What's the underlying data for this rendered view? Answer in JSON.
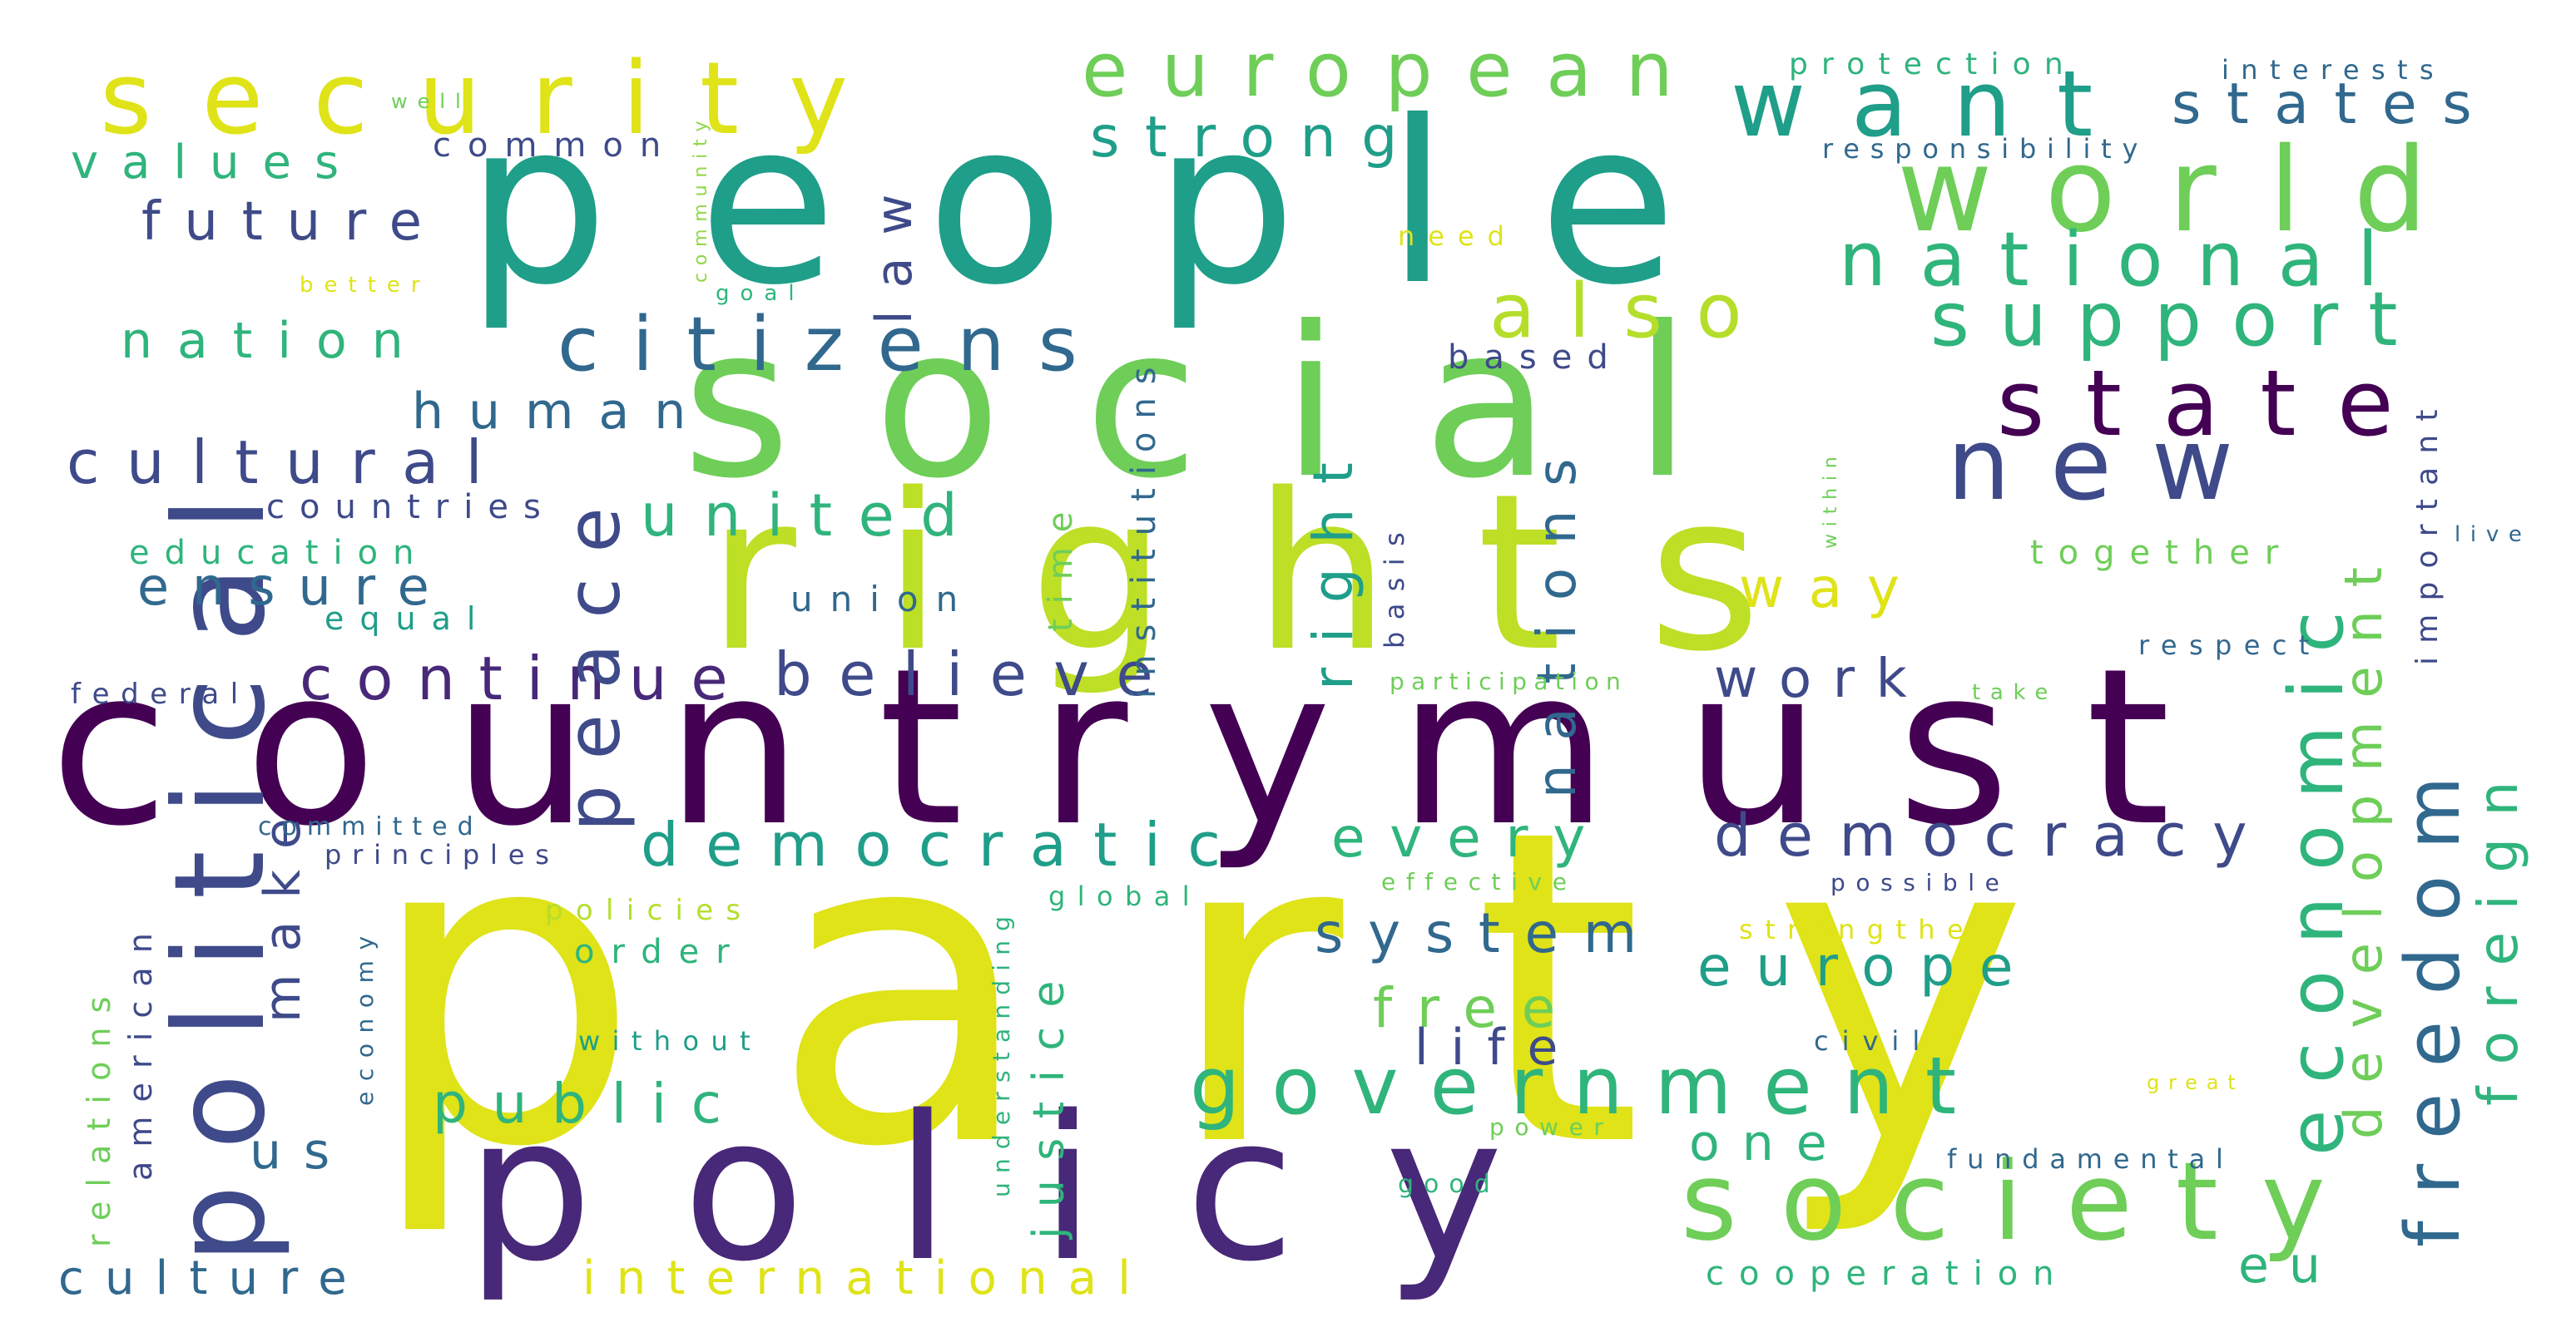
{
  "palette": {
    "yellow": "#dfe318",
    "lime": "#6ece58",
    "green": "#2fb47c",
    "teal": "#1f9e89",
    "blue": "#31688e",
    "indigo": "#3e4a89",
    "purple": "#440154",
    "darkpurple": "#482878"
  },
  "words": [
    {
      "key": "party",
      "text": "party",
      "color": "#dfe318"
    },
    {
      "key": "country",
      "text": "country",
      "color": "#440154"
    },
    {
      "key": "must",
      "text": "must",
      "color": "#440154"
    },
    {
      "key": "people",
      "text": "people",
      "color": "#1f9e89"
    },
    {
      "key": "social",
      "text": "social",
      "color": "#6ece58"
    },
    {
      "key": "rights",
      "text": "rights",
      "color": "#bddf26"
    },
    {
      "key": "policy",
      "text": "policy",
      "color": "#482878"
    },
    {
      "key": "political",
      "text": "political",
      "color": "#3e4a89"
    },
    {
      "key": "security",
      "text": "security",
      "color": "#dfe318"
    },
    {
      "key": "european",
      "text": "european",
      "color": "#6ece58"
    },
    {
      "key": "want",
      "text": "want",
      "color": "#1f9e89"
    },
    {
      "key": "world",
      "text": "world",
      "color": "#6ece58"
    },
    {
      "key": "states",
      "text": "states",
      "color": "#31688e"
    },
    {
      "key": "national",
      "text": "national",
      "color": "#2fb47c"
    },
    {
      "key": "state",
      "text": "state",
      "color": "#440154"
    },
    {
      "key": "new",
      "text": "new",
      "color": "#3e4a89"
    },
    {
      "key": "society",
      "text": "society",
      "color": "#6ece58"
    },
    {
      "key": "government",
      "text": "government",
      "color": "#2fb47c"
    },
    {
      "key": "citizens",
      "text": "citizens",
      "color": "#31688e"
    },
    {
      "key": "also",
      "text": "also",
      "color": "#b5de2b"
    },
    {
      "key": "support",
      "text": "support",
      "color": "#2fb47c"
    },
    {
      "key": "strong",
      "text": "strong",
      "color": "#1f9e89"
    },
    {
      "key": "economic",
      "text": "economic",
      "color": "#2fb47c"
    },
    {
      "key": "freedom",
      "text": "freedom",
      "color": "#31688e"
    },
    {
      "key": "development",
      "text": "development",
      "color": "#6ece58"
    },
    {
      "key": "foreign",
      "text": "foreign",
      "color": "#2fb47c"
    },
    {
      "key": "democracy",
      "text": "democracy",
      "color": "#3e4a89"
    },
    {
      "key": "democratic",
      "text": "democratic",
      "color": "#1f9e89"
    },
    {
      "key": "continue",
      "text": "continue",
      "color": "#482878"
    },
    {
      "key": "believe",
      "text": "believe",
      "color": "#3e4a89"
    },
    {
      "key": "peace",
      "text": "peace",
      "color": "#3e4a89"
    },
    {
      "key": "right",
      "text": "right",
      "color": "#1f9e89"
    },
    {
      "key": "nations",
      "text": "nations",
      "color": "#31688e"
    },
    {
      "key": "united",
      "text": "united",
      "color": "#2fb47c"
    },
    {
      "key": "cultural",
      "text": "cultural",
      "color": "#3e4a89"
    },
    {
      "key": "values",
      "text": "values",
      "color": "#2fb47c"
    },
    {
      "key": "future",
      "text": "future",
      "color": "#3e4a89"
    },
    {
      "key": "nation",
      "text": "nation",
      "color": "#2fb47c"
    },
    {
      "key": "human",
      "text": "human",
      "color": "#31688e"
    },
    {
      "key": "ensure",
      "text": "ensure",
      "color": "#31688e"
    },
    {
      "key": "law",
      "text": "law",
      "color": "#3e4a89"
    },
    {
      "key": "europe",
      "text": "europe",
      "color": "#1f9e89"
    },
    {
      "key": "system",
      "text": "system",
      "color": "#31688e"
    },
    {
      "key": "every",
      "text": "every",
      "color": "#2fb47c"
    },
    {
      "key": "work",
      "text": "work",
      "color": "#3e4a89"
    },
    {
      "key": "way",
      "text": "way",
      "color": "#dfe318"
    },
    {
      "key": "free",
      "text": "free",
      "color": "#6ece58"
    },
    {
      "key": "life",
      "text": "life",
      "color": "#3e4a89"
    },
    {
      "key": "public",
      "text": "public",
      "color": "#2fb47c"
    },
    {
      "key": "one",
      "text": "one",
      "color": "#2fb47c"
    },
    {
      "key": "international",
      "text": "international",
      "color": "#dfe318"
    },
    {
      "key": "culture",
      "text": "culture",
      "color": "#31688e"
    },
    {
      "key": "us",
      "text": "us",
      "color": "#31688e"
    },
    {
      "key": "make",
      "text": "make",
      "color": "#3e4a89"
    },
    {
      "key": "justice",
      "text": "justice",
      "color": "#2fb47c"
    },
    {
      "key": "time",
      "text": "time",
      "color": "#6ece58"
    },
    {
      "key": "union",
      "text": "union",
      "color": "#31688e"
    },
    {
      "key": "institutions",
      "text": "institutions",
      "color": "#31688e"
    },
    {
      "key": "cooperation",
      "text": "cooperation",
      "color": "#2fb47c"
    },
    {
      "key": "eu",
      "text": "eu",
      "color": "#2fb47c"
    },
    {
      "key": "common",
      "text": "common",
      "color": "#3e4a89"
    },
    {
      "key": "well",
      "text": "well",
      "color": "#6ece58"
    },
    {
      "key": "community",
      "text": "community",
      "color": "#8fd744"
    },
    {
      "key": "better",
      "text": "better",
      "color": "#dfe318"
    },
    {
      "key": "goal",
      "text": "goal",
      "color": "#2fb47c"
    },
    {
      "key": "need",
      "text": "need",
      "color": "#dfe318"
    },
    {
      "key": "protection",
      "text": "protection",
      "color": "#2fb47c"
    },
    {
      "key": "interests",
      "text": "interests",
      "color": "#31688e"
    },
    {
      "key": "responsibility",
      "text": "responsibility",
      "color": "#31688e"
    },
    {
      "key": "based",
      "text": "based",
      "color": "#3e4a89"
    },
    {
      "key": "countries",
      "text": "countries",
      "color": "#3e4a89"
    },
    {
      "key": "education",
      "text": "education",
      "color": "#2fb47c"
    },
    {
      "key": "equal",
      "text": "equal",
      "color": "#1f9e89"
    },
    {
      "key": "federal",
      "text": "federal",
      "color": "#3e4a89"
    },
    {
      "key": "committed",
      "text": "committed",
      "color": "#31688e"
    },
    {
      "key": "principles",
      "text": "principles",
      "color": "#3e4a89"
    },
    {
      "key": "relations",
      "text": "relations",
      "color": "#6ece58"
    },
    {
      "key": "american",
      "text": "american",
      "color": "#3e4a89"
    },
    {
      "key": "economy",
      "text": "economy",
      "color": "#31688e"
    },
    {
      "key": "policies",
      "text": "policies",
      "color": "#b5de2b"
    },
    {
      "key": "order",
      "text": "order",
      "color": "#2fb47c"
    },
    {
      "key": "without",
      "text": "without",
      "color": "#1f9e89"
    },
    {
      "key": "understanding",
      "text": "understanding",
      "color": "#2fb47c"
    },
    {
      "key": "global",
      "text": "global",
      "color": "#2fb47c"
    },
    {
      "key": "effective",
      "text": "effective",
      "color": "#6ece58"
    },
    {
      "key": "basis",
      "text": "basis",
      "color": "#3e4a89"
    },
    {
      "key": "participation",
      "text": "participation",
      "color": "#6ece58"
    },
    {
      "key": "within",
      "text": "within",
      "color": "#6ece58"
    },
    {
      "key": "together",
      "text": "together",
      "color": "#6ece58"
    },
    {
      "key": "important",
      "text": "important",
      "color": "#3e4a89"
    },
    {
      "key": "live",
      "text": "live",
      "color": "#31688e"
    },
    {
      "key": "respect",
      "text": "respect",
      "color": "#31688e"
    },
    {
      "key": "take",
      "text": "take",
      "color": "#6ece58"
    },
    {
      "key": "possible",
      "text": "possible",
      "color": "#3e4a89"
    },
    {
      "key": "strengthen",
      "text": "strengthen",
      "color": "#dfe318"
    },
    {
      "key": "civil",
      "text": "civil",
      "color": "#31688e"
    },
    {
      "key": "great",
      "text": "great",
      "color": "#dfe318"
    },
    {
      "key": "power",
      "text": "power",
      "color": "#6ece58"
    },
    {
      "key": "good",
      "text": "good",
      "color": "#2fb47c"
    },
    {
      "key": "fundamental",
      "text": "fundamental",
      "color": "#31688e"
    }
  ]
}
